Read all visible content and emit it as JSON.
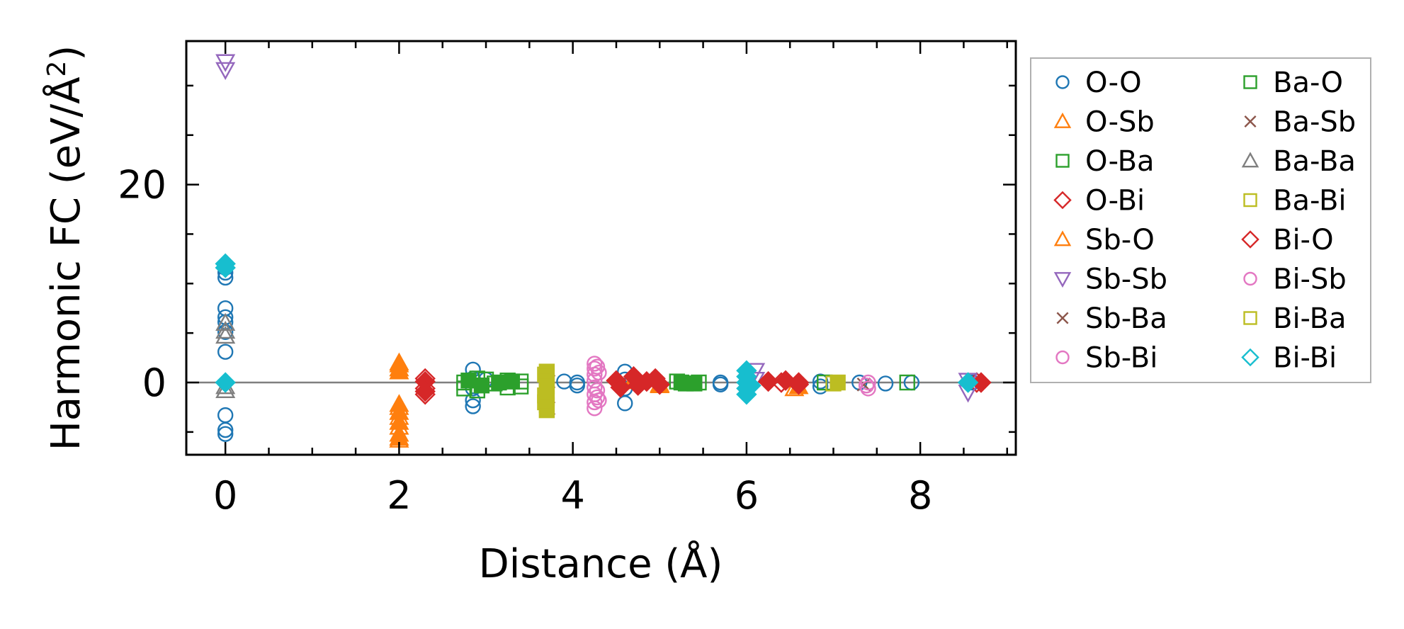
{
  "chart_data": {
    "type": "scatter",
    "title": "",
    "xlabel": "Distance (Å)",
    "ylabel_parts": [
      "Harmonic FC (eV/Å",
      "2",
      ")"
    ],
    "xlim": [
      -0.45,
      9.1
    ],
    "ylim": [
      -7.3,
      34.5
    ],
    "xticks": [
      0,
      2,
      4,
      6,
      8
    ],
    "xtick_labels": [
      "0",
      "2",
      "4",
      "6",
      "8"
    ],
    "yticks": [
      0,
      20
    ],
    "ytick_labels": [
      "0",
      "20"
    ],
    "zero_line": true,
    "legend_position": "outside-right",
    "colors": {
      "blue": "#1f77b4",
      "orange": "#ff7f0e",
      "green": "#2ca02c",
      "red": "#d62728",
      "purple": "#9467bd",
      "brown": "#8c564b",
      "pink": "#e377c2",
      "gray": "#7f7f7f",
      "olive": "#bcbd22",
      "cyan": "#17becf"
    },
    "series": [
      {
        "name": "O-O",
        "marker": "circle",
        "color": "#1f77b4",
        "filled": false,
        "points": [
          [
            0,
            11.6
          ],
          [
            0,
            11.1
          ],
          [
            0,
            10.6
          ],
          [
            0,
            7.5
          ],
          [
            0,
            6.6
          ],
          [
            0,
            6.1
          ],
          [
            0,
            5.1
          ],
          [
            0,
            3.1
          ],
          [
            0,
            -3.3
          ],
          [
            0,
            -4.8
          ],
          [
            0,
            -5.2
          ],
          [
            2.85,
            1.3
          ],
          [
            2.85,
            0.4
          ],
          [
            2.85,
            -0.6
          ],
          [
            2.85,
            -1.8
          ],
          [
            2.85,
            -2.4
          ],
          [
            3.0,
            0.3
          ],
          [
            3.3,
            0.2
          ],
          [
            3.9,
            0.1
          ],
          [
            4.05,
            0.0
          ],
          [
            4.05,
            -0.3
          ],
          [
            4.6,
            1.1
          ],
          [
            4.6,
            0.3
          ],
          [
            4.6,
            -0.6
          ],
          [
            4.6,
            -2.1
          ],
          [
            5.7,
            0.0
          ],
          [
            5.7,
            -0.2
          ],
          [
            6.85,
            0.1
          ],
          [
            6.85,
            -0.4
          ],
          [
            7.3,
            0.0
          ],
          [
            7.6,
            -0.1
          ],
          [
            7.9,
            0.0
          ],
          [
            8.6,
            0.0
          ]
        ]
      },
      {
        "name": "O-Sb",
        "marker": "triangle-up",
        "color": "#ff7f0e",
        "filled": false,
        "points": [
          [
            2.0,
            2.0
          ],
          [
            2.0,
            1.4
          ],
          [
            2.0,
            -2.5
          ],
          [
            2.0,
            -3.5
          ],
          [
            2.0,
            -4.5
          ],
          [
            2.0,
            -5.8
          ],
          [
            4.75,
            0.1
          ],
          [
            5.0,
            -0.3
          ],
          [
            6.55,
            -0.6
          ]
        ]
      },
      {
        "name": "O-Ba",
        "marker": "square",
        "color": "#2ca02c",
        "filled": false,
        "points": [
          [
            2.75,
            0.0
          ],
          [
            2.75,
            -0.6
          ],
          [
            2.9,
            0.4
          ],
          [
            2.9,
            -0.8
          ],
          [
            3.0,
            0.3
          ],
          [
            3.1,
            -0.1
          ],
          [
            3.25,
            0.2
          ],
          [
            3.25,
            -0.5
          ],
          [
            3.4,
            0.1
          ],
          [
            3.4,
            -0.4
          ],
          [
            5.2,
            0.1
          ],
          [
            5.3,
            -0.1
          ],
          [
            5.45,
            0.0
          ],
          [
            6.9,
            0.0
          ],
          [
            7.85,
            0.0
          ]
        ]
      },
      {
        "name": "O-Bi",
        "marker": "diamond",
        "color": "#d62728",
        "filled": false,
        "points": [
          [
            2.3,
            0.4
          ],
          [
            2.3,
            -0.6
          ],
          [
            2.3,
            -1.2
          ],
          [
            6.4,
            0.0
          ],
          [
            6.6,
            0.0
          ],
          [
            8.65,
            0.0
          ]
        ]
      },
      {
        "name": "Sb-O",
        "marker": "triangle-up",
        "color": "#ff7f0e",
        "filled": true,
        "points": [
          [
            2.0,
            1.8
          ],
          [
            2.0,
            1.1
          ],
          [
            2.0,
            -2.2
          ],
          [
            2.0,
            -3.0
          ],
          [
            2.0,
            -4.0
          ],
          [
            2.0,
            -5.2
          ],
          [
            2.0,
            -5.6
          ],
          [
            4.7,
            0.3
          ],
          [
            5.0,
            -0.2
          ],
          [
            6.6,
            -0.4
          ]
        ]
      },
      {
        "name": "Sb-Sb",
        "marker": "triangle-down",
        "color": "#9467bd",
        "filled": false,
        "points": [
          [
            0,
            32.4
          ],
          [
            0,
            31.6
          ],
          [
            6.1,
            1.2
          ],
          [
            6.1,
            0.3
          ],
          [
            8.55,
            0.2
          ],
          [
            8.55,
            -1.0
          ]
        ]
      },
      {
        "name": "Sb-Ba",
        "marker": "x",
        "color": "#8c564b",
        "filled": false,
        "points": [
          [
            3.7,
            -2.4
          ],
          [
            3.7,
            0.3
          ],
          [
            7.05,
            0.0
          ],
          [
            7.35,
            -0.2
          ]
        ]
      },
      {
        "name": "Sb-Bi",
        "marker": "circle",
        "color": "#e377c2",
        "filled": false,
        "points": [
          [
            4.25,
            1.9
          ],
          [
            4.25,
            1.4
          ],
          [
            4.25,
            0.8
          ],
          [
            4.25,
            0.2
          ],
          [
            4.25,
            -0.5
          ],
          [
            4.25,
            -1.2
          ],
          [
            4.25,
            -2.0
          ],
          [
            4.25,
            -2.6
          ],
          [
            4.3,
            -1.8
          ],
          [
            4.3,
            1.0
          ],
          [
            7.4,
            0.0
          ],
          [
            7.4,
            -0.6
          ]
        ]
      },
      {
        "name": "Ba-O",
        "marker": "square",
        "color": "#2ca02c",
        "filled": true,
        "points": [
          [
            2.8,
            0.2
          ],
          [
            2.95,
            -0.3
          ],
          [
            3.15,
            0.0
          ],
          [
            3.3,
            0.1
          ],
          [
            5.25,
            0.0
          ],
          [
            5.4,
            -0.1
          ]
        ]
      },
      {
        "name": "Ba-Sb",
        "marker": "x",
        "color": "#8c564b",
        "filled": true,
        "points": [
          [
            3.72,
            -2.6
          ],
          [
            3.72,
            0.1
          ]
        ]
      },
      {
        "name": "Ba-Ba",
        "marker": "triangle-up",
        "color": "#7f7f7f",
        "filled": false,
        "points": [
          [
            0,
            6.0
          ],
          [
            0,
            5.2
          ],
          [
            0,
            4.7
          ],
          [
            0,
            -0.4
          ],
          [
            0,
            -0.8
          ]
        ]
      },
      {
        "name": "Ba-Bi",
        "marker": "square",
        "color": "#bcbd22",
        "filled": true,
        "points": [
          [
            3.7,
            1.1
          ],
          [
            3.7,
            0.6
          ],
          [
            3.7,
            0.1
          ],
          [
            3.7,
            -0.4
          ],
          [
            3.7,
            -1.0
          ],
          [
            3.7,
            -1.6
          ],
          [
            3.7,
            -2.3
          ],
          [
            3.7,
            -2.8
          ],
          [
            7.05,
            0.0
          ]
        ]
      },
      {
        "name": "Bi-O",
        "marker": "diamond",
        "color": "#d62728",
        "filled": true,
        "points": [
          [
            2.3,
            0.1
          ],
          [
            2.3,
            -0.9
          ],
          [
            4.5,
            0.2
          ],
          [
            4.55,
            -0.5
          ],
          [
            4.7,
            0.6
          ],
          [
            4.75,
            -0.3
          ],
          [
            4.85,
            0.1
          ],
          [
            4.95,
            0.4
          ],
          [
            5.0,
            -0.2
          ],
          [
            6.25,
            0.1
          ],
          [
            6.45,
            0.2
          ],
          [
            6.6,
            -0.2
          ],
          [
            8.7,
            0.0
          ]
        ]
      },
      {
        "name": "Bi-Sb",
        "marker": "circle",
        "color": "#e377c2",
        "filled": false,
        "points": [
          [
            4.28,
            1.6
          ],
          [
            4.28,
            -0.8
          ],
          [
            4.28,
            -1.5
          ],
          [
            7.38,
            -0.3
          ]
        ]
      },
      {
        "name": "Bi-Ba",
        "marker": "square",
        "color": "#bcbd22",
        "filled": false,
        "points": [
          [
            3.68,
            0.8
          ],
          [
            3.68,
            -1.3
          ],
          [
            3.68,
            -2.0
          ],
          [
            7.0,
            -0.1
          ]
        ]
      },
      {
        "name": "Bi-Bi",
        "marker": "diamond",
        "color": "#17becf",
        "filled": true,
        "points": [
          [
            0,
            12.0
          ],
          [
            0,
            11.6
          ],
          [
            0,
            0.0
          ],
          [
            6.0,
            1.2
          ],
          [
            6.0,
            0.6
          ],
          [
            6.0,
            0.0
          ],
          [
            6.0,
            -0.6
          ],
          [
            6.0,
            -1.2
          ],
          [
            6.05,
            -0.3
          ],
          [
            8.55,
            0.0
          ]
        ]
      }
    ]
  }
}
